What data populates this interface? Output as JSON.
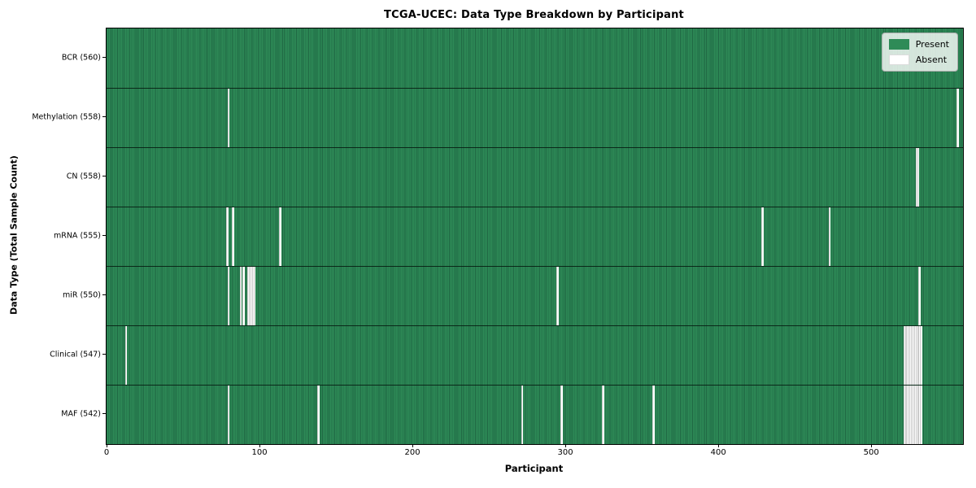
{
  "title": "TCGA-UCEC: Data Type Breakdown by Participant",
  "x_axis": {
    "label": "Participant",
    "ticks": [
      0,
      100,
      200,
      300,
      400,
      500
    ]
  },
  "y_axis": {
    "label": "Data Type (Total Sample Count)"
  },
  "legend": {
    "present_label": "Present",
    "absent_label": "Absent"
  },
  "colors": {
    "present": "#2e8b57",
    "present_edge": "#1f6743",
    "absent": "#ffffff",
    "absent_edge": "#c9c9c9",
    "row_divider": "#0a1f14"
  },
  "chart_data": {
    "type": "heatmap",
    "title": "TCGA-UCEC: Data Type Breakdown by Participant",
    "xlabel": "Participant",
    "ylabel": "Data Type (Total Sample Count)",
    "x_range": [
      0,
      560
    ],
    "total_participants": 560,
    "x_ticks": [
      0,
      100,
      200,
      300,
      400,
      500
    ],
    "legend_entries": [
      "Present",
      "Absent"
    ],
    "legend_position": "upper right",
    "rows": [
      {
        "label": "BCR (560)",
        "present_count": 560,
        "absent_participants": []
      },
      {
        "label": "Methylation (558)",
        "present_count": 558,
        "absent_participants": [
          79,
          556
        ]
      },
      {
        "label": "CN (558)",
        "present_count": 558,
        "absent_participants": [
          529,
          530
        ]
      },
      {
        "label": "mRNA (555)",
        "present_count": 555,
        "absent_participants": [
          78,
          82,
          113,
          428,
          472
        ]
      },
      {
        "label": "miR (550)",
        "present_count": 550,
        "absent_participants": [
          79,
          87,
          89,
          92,
          93,
          94,
          95,
          96,
          294,
          531
        ]
      },
      {
        "label": "Clinical (547)",
        "present_count": 547,
        "absent_participants": [
          12,
          521,
          522,
          523,
          524,
          525,
          526,
          527,
          528,
          529,
          530,
          531,
          532
        ]
      },
      {
        "label": "MAF (542)",
        "present_count": 542,
        "absent_participants": [
          79,
          138,
          271,
          297,
          324,
          357,
          521,
          522,
          523,
          524,
          525,
          526,
          527,
          528,
          529,
          530,
          531,
          532
        ]
      }
    ]
  }
}
